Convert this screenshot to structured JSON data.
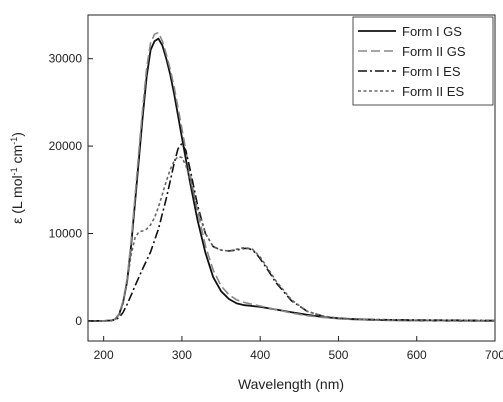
{
  "chart_data": {
    "type": "line",
    "title": "",
    "xlabel": "Wavelength (nm)",
    "ylabel_main": "ε (L mol",
    "ylabel_sup1": "-1",
    "ylabel_mid": " cm",
    "ylabel_sup2": "-1",
    "ylabel_end": ")",
    "xlim": [
      180,
      700
    ],
    "ylim": [
      -2300,
      35000
    ],
    "xticks": [
      200,
      300,
      400,
      500,
      600,
      700
    ],
    "xtick_labels": [
      "200",
      "300",
      "400",
      "500",
      "600",
      "700"
    ],
    "yticks": [
      0,
      10000,
      20000,
      30000
    ],
    "ytick_labels": [
      "0",
      "10000",
      "20000",
      "30000"
    ],
    "grid": false,
    "legend_position": "top-right",
    "series": [
      {
        "name": "Form I GS",
        "color": "#111111",
        "style": "solid",
        "x": [
          180,
          200,
          210,
          215,
          220,
          225,
          230,
          235,
          240,
          245,
          250,
          255,
          260,
          265,
          270,
          275,
          280,
          285,
          290,
          295,
          300,
          310,
          320,
          330,
          340,
          350,
          360,
          370,
          380,
          390,
          400,
          420,
          440,
          460,
          480,
          500,
          520,
          550,
          600,
          650,
          700
        ],
        "y": [
          0,
          0,
          50,
          200,
          800,
          2200,
          4500,
          8500,
          13500,
          18500,
          23500,
          28000,
          31000,
          32000,
          32300,
          31500,
          30000,
          28200,
          26000,
          23500,
          21000,
          16000,
          11500,
          7800,
          5000,
          3400,
          2500,
          2000,
          1800,
          1700,
          1600,
          1300,
          1000,
          700,
          450,
          300,
          200,
          100,
          50,
          20,
          0
        ]
      },
      {
        "name": "Form II GS",
        "color": "#888888",
        "style": "dashed",
        "x": [
          180,
          200,
          210,
          215,
          220,
          225,
          230,
          235,
          240,
          245,
          250,
          255,
          260,
          265,
          270,
          275,
          280,
          285,
          290,
          295,
          300,
          310,
          320,
          330,
          340,
          350,
          360,
          370,
          380,
          390,
          400,
          420,
          440,
          460,
          480,
          500,
          520,
          550,
          600,
          650,
          700
        ],
        "y": [
          0,
          0,
          50,
          200,
          800,
          2300,
          4800,
          9000,
          14200,
          19500,
          24500,
          29000,
          31800,
          32800,
          33000,
          32000,
          30500,
          28800,
          26800,
          24400,
          22000,
          17000,
          12500,
          8600,
          5800,
          4000,
          3000,
          2400,
          2100,
          1900,
          1700,
          1300,
          900,
          600,
          400,
          250,
          150,
          80,
          30,
          10,
          0
        ]
      },
      {
        "name": "Form I ES",
        "color": "#111111",
        "style": "dashdot",
        "x": [
          180,
          200,
          210,
          215,
          220,
          225,
          230,
          235,
          240,
          245,
          250,
          260,
          270,
          280,
          290,
          295,
          300,
          305,
          310,
          320,
          330,
          340,
          350,
          360,
          370,
          380,
          385,
          390,
          395,
          400,
          410,
          420,
          440,
          460,
          480,
          500,
          520,
          550,
          600,
          650,
          700
        ],
        "y": [
          0,
          0,
          50,
          150,
          400,
          1000,
          1900,
          2900,
          4000,
          5000,
          6000,
          7900,
          10500,
          14000,
          18000,
          19700,
          20300,
          19500,
          17500,
          13200,
          10000,
          8500,
          8100,
          8000,
          8100,
          8300,
          8300,
          8100,
          7700,
          7100,
          5800,
          4400,
          2300,
          1100,
          550,
          300,
          200,
          150,
          100,
          80,
          50
        ]
      },
      {
        "name": "Form II ES",
        "color": "#666666",
        "style": "dotted",
        "x": [
          180,
          200,
          210,
          215,
          220,
          225,
          230,
          235,
          240,
          245,
          250,
          255,
          260,
          265,
          270,
          275,
          280,
          285,
          290,
          295,
          300,
          305,
          310,
          320,
          330,
          340,
          350,
          360,
          370,
          380,
          390,
          400,
          410,
          420,
          440,
          460,
          480,
          500,
          550,
          600,
          700
        ],
        "y": [
          0,
          0,
          50,
          200,
          700,
          2000,
          4500,
          7500,
          9500,
          10200,
          10300,
          10500,
          11000,
          11800,
          13000,
          14500,
          16000,
          17300,
          18300,
          18800,
          18700,
          17800,
          16300,
          12800,
          10000,
          8500,
          8100,
          8000,
          8200,
          8400,
          8200,
          7300,
          6000,
          4600,
          2400,
          1100,
          550,
          300,
          150,
          80,
          40
        ]
      }
    ]
  }
}
